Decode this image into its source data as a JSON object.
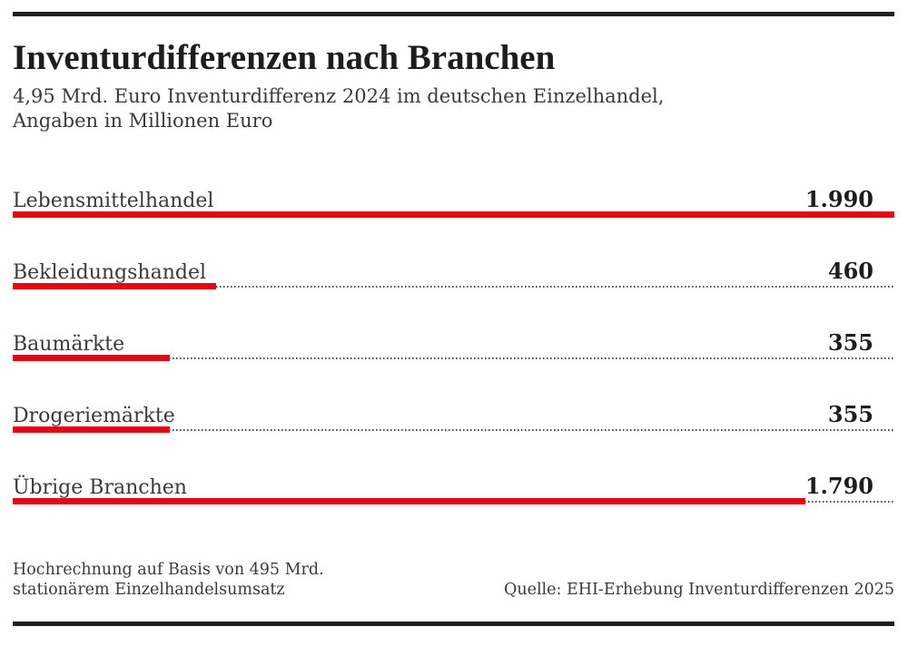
{
  "header": {
    "title": "Inventurdifferenzen nach Branchen",
    "subtitle_line1": "4,95 Mrd. Euro Inventurdifferenz 2024 im deutschen Einzelhandel,",
    "subtitle_line2": "Angaben in Millionen Euro"
  },
  "chart_data": {
    "type": "bar",
    "orientation": "horizontal",
    "title": "Inventurdifferenzen nach Branchen",
    "subtitle": "4,95 Mrd. Euro Inventurdifferenz 2024 im deutschen Einzelhandel, Angaben in Millionen Euro",
    "unit": "Millionen Euro",
    "categories": [
      "Lebensmittelhandel",
      "Bekleidungshandel",
      "Baumärkte",
      "Drogeriemärkte",
      "Übrige Branchen"
    ],
    "values": [
      1990,
      460,
      355,
      355,
      1790
    ],
    "value_labels": [
      "1.990",
      "460",
      "355",
      "355",
      "1.790"
    ],
    "xlim": [
      0,
      1990
    ],
    "total_label": "4,95 Mrd. Euro",
    "grid": "dotted-baseline-per-bar",
    "legend": "none"
  },
  "footer": {
    "note_line1": "Hochrechnung auf Basis von 495 Mrd.",
    "note_line2": "stationärem Einzelhandelsumsatz",
    "source": "Quelle: EHI-Erhebung Inventurdifferenzen 2025"
  },
  "colors": {
    "bar": "#e30613",
    "rule": "#231f20",
    "dotted_line": "#4a4a4a"
  }
}
